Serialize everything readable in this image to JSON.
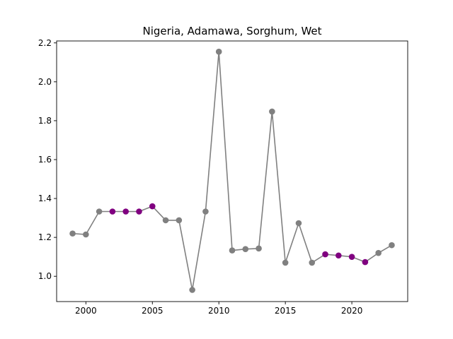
{
  "chart_data": {
    "type": "line",
    "title": "Nigeria, Adamawa, Sorghum, Wet",
    "xlabel": "",
    "ylabel": "",
    "xlim": [
      1997.8,
      2024.2
    ],
    "ylim": [
      0.87,
      2.21
    ],
    "x_ticks": [
      2000,
      2005,
      2010,
      2015,
      2020
    ],
    "y_ticks": [
      1.0,
      1.2,
      1.4,
      1.6,
      1.8,
      2.0,
      2.2
    ],
    "x_tick_labels": [
      "2000",
      "2005",
      "2010",
      "2015",
      "2020"
    ],
    "y_tick_labels": [
      "1.0",
      "1.2",
      "1.4",
      "1.6",
      "1.8",
      "2.0",
      "2.2"
    ],
    "grid": false,
    "line_color": "#808080",
    "series": [
      {
        "x": [
          1999,
          2000,
          2001,
          2002,
          2003,
          2004,
          2005,
          2006,
          2007,
          2008,
          2009,
          2010,
          2011,
          2012,
          2013,
          2014,
          2015,
          2016,
          2017,
          2018,
          2019,
          2020,
          2021,
          2022,
          2023
        ],
        "values": [
          1.22,
          1.215,
          1.333,
          1.333,
          1.333,
          1.333,
          1.36,
          1.288,
          1.288,
          0.93,
          1.333,
          2.155,
          1.133,
          1.14,
          1.143,
          1.847,
          1.07,
          1.273,
          1.07,
          1.113,
          1.107,
          1.1,
          1.073,
          1.12,
          1.16
        ],
        "marker_colors": [
          "#808080",
          "#808080",
          "#808080",
          "#800080",
          "#800080",
          "#800080",
          "#800080",
          "#808080",
          "#808080",
          "#808080",
          "#808080",
          "#808080",
          "#808080",
          "#808080",
          "#808080",
          "#808080",
          "#808080",
          "#808080",
          "#808080",
          "#800080",
          "#800080",
          "#800080",
          "#800080",
          "#808080",
          "#808080"
        ]
      }
    ]
  }
}
